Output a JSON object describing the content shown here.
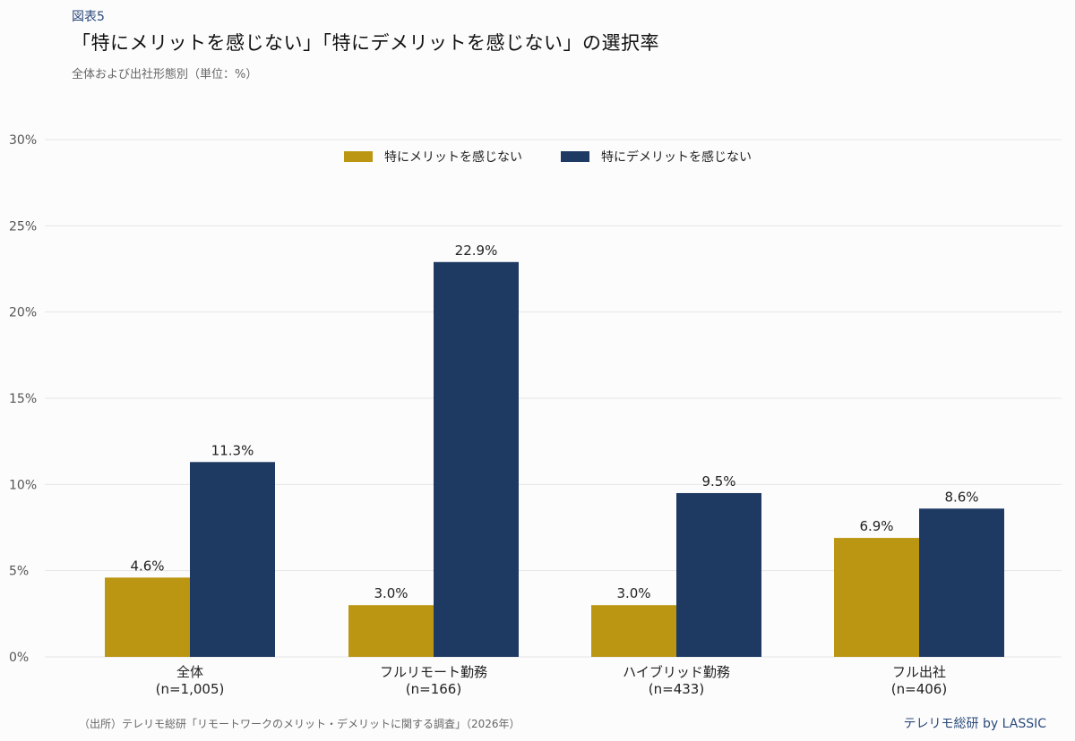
{
  "figure_label": "図表5",
  "source": "（出所）テレリモ総研「リモートワークのメリット・デメリットに関する調査」（2026年）",
  "brand": "テレリモ総研 by LASSIC",
  "colors": {
    "series1": "#bb9612",
    "series2": "#1e3a62",
    "grid": "#e6e6e6",
    "axis_text": "#555555"
  },
  "chart_data": {
    "type": "bar",
    "title": "「特にメリットを感じない」「特にデメリットを感じない」の選択率",
    "subtitle": "全体および出社形態別（単位：%）",
    "categories": [
      {
        "label": "全体",
        "n": "(n=1,005)"
      },
      {
        "label": "フルリモート勤務",
        "n": "(n=166)"
      },
      {
        "label": "ハイブリッド勤務",
        "n": "(n=433)"
      },
      {
        "label": "フル出社",
        "n": "(n=406)"
      }
    ],
    "series": [
      {
        "name": "特にメリットを感じない",
        "values": [
          4.6,
          3.0,
          3.0,
          6.9
        ],
        "labels": [
          "4.6%",
          "3.0%",
          "3.0%",
          "6.9%"
        ]
      },
      {
        "name": "特にデメリットを感じない",
        "values": [
          11.3,
          22.9,
          9.5,
          8.6
        ],
        "labels": [
          "11.3%",
          "22.9%",
          "9.5%",
          "8.6%"
        ]
      }
    ],
    "ylim": [
      0,
      30
    ],
    "yticks": [
      0,
      5,
      10,
      15,
      20,
      25,
      30
    ],
    "ytick_labels": [
      "0%",
      "5%",
      "10%",
      "15%",
      "20%",
      "25%",
      "30%"
    ],
    "grid": true,
    "legend_position": "top-center"
  }
}
